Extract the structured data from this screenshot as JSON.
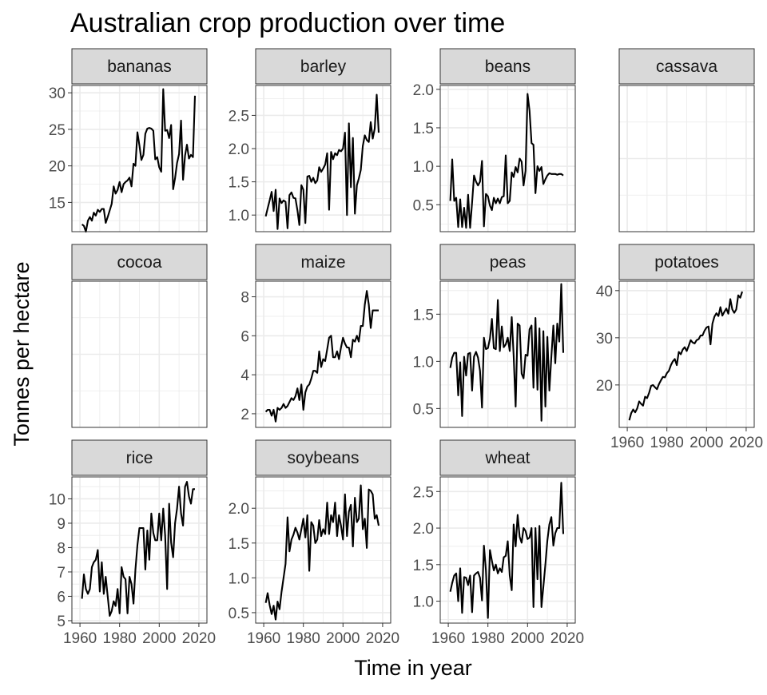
{
  "chart_data": {
    "type": "line",
    "title": "Australian crop production over time",
    "xlabel": "Time in year",
    "ylabel": "Tonnes per hectare",
    "x_ticks": [
      1960,
      1980,
      2000,
      2020
    ],
    "xlim": [
      1959,
      2021
    ],
    "grid": true,
    "legend": "none",
    "colors": {
      "line": "#000000",
      "strip_fill": "#d9d9d9",
      "grid": "#ebebeb",
      "border": "#333333",
      "text": "#4d4d4d"
    },
    "panels": [
      {
        "name": "bananas",
        "ylim": [
          11,
          31
        ],
        "y_ticks": [
          15,
          20,
          25,
          30
        ],
        "x": [
          1961,
          1962,
          1963,
          1964,
          1965,
          1966,
          1967,
          1968,
          1969,
          1970,
          1971,
          1972,
          1973,
          1974,
          1975,
          1976,
          1977,
          1978,
          1979,
          1980,
          1981,
          1982,
          1983,
          1984,
          1985,
          1986,
          1987,
          1988,
          1989,
          1990,
          1991,
          1992,
          1993,
          1994,
          1995,
          1996,
          1997,
          1998,
          1999,
          2000,
          2001,
          2002,
          2003,
          2004,
          2005,
          2006,
          2007,
          2008,
          2009,
          2010,
          2011,
          2012,
          2013,
          2014,
          2015,
          2016,
          2017,
          2018
        ],
        "y": [
          12.0,
          11.8,
          11.0,
          12.5,
          13.0,
          12.5,
          13.6,
          13.2,
          14.0,
          13.7,
          14.1,
          14.1,
          12.2,
          13.0,
          13.9,
          14.8,
          17.2,
          16.2,
          16.7,
          17.8,
          16.4,
          17.5,
          17.8,
          18.0,
          18.4,
          17.2,
          20.3,
          20.0,
          24.6,
          22.8,
          20.8,
          21.5,
          24.4,
          25.1,
          25.2,
          25.1,
          24.8,
          20.9,
          21.2,
          19.8,
          19.2,
          30.5,
          24.8,
          24.9,
          23.8,
          25.6,
          16.8,
          18.3,
          20.4,
          21.6,
          26.2,
          18.1,
          21.4,
          22.9,
          21.0,
          21.5,
          21.2,
          29.6
        ]
      },
      {
        "name": "barley",
        "ylim": [
          0.75,
          2.95
        ],
        "y_ticks": [
          1.0,
          1.5,
          2.0,
          2.5
        ],
        "x": [
          1961,
          1962,
          1963,
          1964,
          1965,
          1966,
          1967,
          1968,
          1969,
          1970,
          1971,
          1972,
          1973,
          1974,
          1975,
          1976,
          1977,
          1978,
          1979,
          1980,
          1981,
          1982,
          1983,
          1984,
          1985,
          1986,
          1987,
          1988,
          1989,
          1990,
          1991,
          1992,
          1993,
          1994,
          1995,
          1996,
          1997,
          1998,
          1999,
          2000,
          2001,
          2002,
          2003,
          2004,
          2005,
          2006,
          2007,
          2008,
          2009,
          2010,
          2011,
          2012,
          2013,
          2014,
          2015,
          2016,
          2017,
          2018
        ],
        "y": [
          0.98,
          1.1,
          1.22,
          1.35,
          1.06,
          1.38,
          0.79,
          1.25,
          1.18,
          1.22,
          1.2,
          0.8,
          1.3,
          1.34,
          1.26,
          1.25,
          1.07,
          0.85,
          1.45,
          1.38,
          0.88,
          1.58,
          1.59,
          1.5,
          1.56,
          1.48,
          1.52,
          1.72,
          1.65,
          1.7,
          1.76,
          1.93,
          1.08,
          1.95,
          1.84,
          1.93,
          1.9,
          1.98,
          1.96,
          2.0,
          2.24,
          1.0,
          2.38,
          1.42,
          2.16,
          1.02,
          1.45,
          1.55,
          1.68,
          2.04,
          2.2,
          2.13,
          2.1,
          2.4,
          2.15,
          2.3,
          2.81,
          2.24
        ]
      },
      {
        "name": "beans",
        "ylim": [
          0.15,
          2.05
        ],
        "y_ticks": [
          0.5,
          1.0,
          1.5,
          2.0
        ],
        "x": [
          1961,
          1962,
          1963,
          1964,
          1965,
          1966,
          1967,
          1968,
          1969,
          1970,
          1971,
          1972,
          1973,
          1974,
          1975,
          1976,
          1977,
          1978,
          1979,
          1980,
          1981,
          1982,
          1983,
          1984,
          1985,
          1986,
          1987,
          1988,
          1989,
          1990,
          1991,
          1992,
          1993,
          1994,
          1995,
          1996,
          1997,
          1998,
          1999,
          2000,
          2001,
          2002,
          2003,
          2004,
          2005,
          2006,
          2007,
          2008,
          2009,
          2010,
          2011,
          2012,
          2013,
          2014,
          2015,
          2016,
          2017,
          2018
        ],
        "y": [
          0.55,
          1.09,
          0.55,
          0.59,
          0.21,
          0.57,
          0.21,
          0.46,
          0.2,
          0.63,
          0.2,
          0.53,
          0.88,
          0.8,
          0.75,
          0.8,
          1.07,
          0.22,
          0.64,
          0.61,
          0.49,
          0.43,
          0.59,
          0.52,
          0.58,
          0.52,
          0.6,
          0.61,
          1.14,
          0.52,
          0.55,
          0.92,
          0.86,
          0.99,
          0.92,
          1.1,
          1.06,
          0.75,
          0.94,
          1.94,
          1.72,
          1.3,
          1.28,
          0.65,
          1.0,
          0.94,
          0.99,
          0.77,
          0.83,
          0.88,
          0.91,
          0.9,
          0.9,
          0.9,
          0.89,
          0.9,
          0.9,
          0.88
        ]
      },
      {
        "name": "cassava",
        "ylim": [
          0,
          1
        ],
        "y_ticks": [],
        "x": [],
        "y": []
      },
      {
        "name": "cocoa",
        "ylim": [
          0,
          1
        ],
        "y_ticks": [],
        "x": [],
        "y": []
      },
      {
        "name": "maize",
        "ylim": [
          1.3,
          8.8
        ],
        "y_ticks": [
          2,
          4,
          6,
          8
        ],
        "x": [
          1961,
          1962,
          1963,
          1964,
          1965,
          1966,
          1967,
          1968,
          1969,
          1970,
          1971,
          1972,
          1973,
          1974,
          1975,
          1976,
          1977,
          1978,
          1979,
          1980,
          1981,
          1982,
          1983,
          1984,
          1985,
          1986,
          1987,
          1988,
          1989,
          1990,
          1991,
          1992,
          1993,
          1994,
          1995,
          1996,
          1997,
          1998,
          1999,
          2000,
          2001,
          2002,
          2003,
          2004,
          2005,
          2006,
          2007,
          2008,
          2009,
          2010,
          2011,
          2012,
          2013,
          2014,
          2015,
          2016,
          2017,
          2018
        ],
        "y": [
          2.1,
          2.2,
          2.2,
          1.9,
          2.2,
          1.6,
          2.3,
          2.2,
          2.3,
          2.5,
          2.3,
          2.4,
          2.6,
          2.8,
          2.7,
          2.9,
          3.3,
          2.7,
          3.5,
          2.2,
          3.1,
          3.4,
          3.5,
          3.8,
          4.2,
          4.2,
          4.1,
          5.2,
          4.4,
          4.8,
          4.7,
          5.3,
          5.9,
          6.0,
          4.9,
          4.9,
          5.2,
          4.8,
          5.4,
          5.9,
          5.6,
          5.4,
          5.4,
          4.9,
          5.8,
          5.7,
          6.0,
          5.7,
          6.5,
          6.5,
          7.6,
          8.3,
          7.6,
          6.4,
          7.3,
          7.3,
          7.3,
          7.3
        ]
      },
      {
        "name": "peas",
        "ylim": [
          0.3,
          1.85
        ],
        "y_ticks": [
          0.5,
          1.0,
          1.5
        ],
        "x": [
          1961,
          1962,
          1963,
          1964,
          1965,
          1966,
          1967,
          1968,
          1969,
          1970,
          1971,
          1972,
          1973,
          1974,
          1975,
          1976,
          1977,
          1978,
          1979,
          1980,
          1981,
          1982,
          1983,
          1984,
          1985,
          1986,
          1987,
          1988,
          1989,
          1990,
          1991,
          1992,
          1993,
          1994,
          1995,
          1996,
          1997,
          1998,
          1999,
          2000,
          2001,
          2002,
          2003,
          2004,
          2005,
          2006,
          2007,
          2008,
          2009,
          2010,
          2011,
          2012,
          2013,
          2014,
          2015,
          2016,
          2017,
          2018
        ],
        "y": [
          0.93,
          1.04,
          1.09,
          1.09,
          0.64,
          0.99,
          0.42,
          1.05,
          0.85,
          1.08,
          1.09,
          0.69,
          1.05,
          1.1,
          1.04,
          0.9,
          0.51,
          1.25,
          1.13,
          1.14,
          1.24,
          1.45,
          1.14,
          1.13,
          1.65,
          1.11,
          1.37,
          1.15,
          1.18,
          1.25,
          1.11,
          1.47,
          1.06,
          0.52,
          1.4,
          1.38,
          0.87,
          0.82,
          1.07,
          1.06,
          1.34,
          1.38,
          0.72,
          1.46,
          0.7,
          1.35,
          0.37,
          1.32,
          0.52,
          1.26,
          0.69,
          1.05,
          1.38,
          0.98,
          1.4,
          1.21,
          1.82,
          1.09
        ]
      },
      {
        "name": "potatoes",
        "ylim": [
          11,
          42
        ],
        "y_ticks": [
          20,
          30,
          40
        ],
        "x": [
          1961,
          1962,
          1963,
          1964,
          1965,
          1966,
          1967,
          1968,
          1969,
          1970,
          1971,
          1972,
          1973,
          1974,
          1975,
          1976,
          1977,
          1978,
          1979,
          1980,
          1981,
          1982,
          1983,
          1984,
          1985,
          1986,
          1987,
          1988,
          1989,
          1990,
          1991,
          1992,
          1993,
          1994,
          1995,
          1996,
          1997,
          1998,
          1999,
          2000,
          2001,
          2002,
          2003,
          2004,
          2005,
          2006,
          2007,
          2008,
          2009,
          2010,
          2011,
          2012,
          2013,
          2014,
          2015,
          2016,
          2017,
          2018
        ],
        "y": [
          12.5,
          14.0,
          14.8,
          14.2,
          15.0,
          16.5,
          16.0,
          15.6,
          17.5,
          17.2,
          18.3,
          19.8,
          20.0,
          19.5,
          19.1,
          20.2,
          21.0,
          21.7,
          21.6,
          22.5,
          23.0,
          24.2,
          25.0,
          25.5,
          24.2,
          27.0,
          26.5,
          27.5,
          28.0,
          27.2,
          28.3,
          29.5,
          29.0,
          28.8,
          29.5,
          29.7,
          30.5,
          30.5,
          31.5,
          32.2,
          32.4,
          28.6,
          33.0,
          34.5,
          35.2,
          34.6,
          36.5,
          34.7,
          35.5,
          36.2,
          35.1,
          38.2,
          36.0,
          35.3,
          36.0,
          39.0,
          38.5,
          39.8
        ]
      },
      {
        "name": "rice",
        "ylim": [
          4.9,
          10.9
        ],
        "y_ticks": [
          5,
          6,
          7,
          8,
          9,
          10
        ],
        "x": [
          1961,
          1962,
          1963,
          1964,
          1965,
          1966,
          1967,
          1968,
          1969,
          1970,
          1971,
          1972,
          1973,
          1974,
          1975,
          1976,
          1977,
          1978,
          1979,
          1980,
          1981,
          1982,
          1983,
          1984,
          1985,
          1986,
          1987,
          1988,
          1989,
          1990,
          1991,
          1992,
          1993,
          1994,
          1995,
          1996,
          1997,
          1998,
          1999,
          2000,
          2001,
          2002,
          2003,
          2004,
          2005,
          2006,
          2007,
          2008,
          2009,
          2010,
          2011,
          2012,
          2013,
          2014,
          2015,
          2016,
          2017,
          2018
        ],
        "y": [
          5.9,
          6.9,
          6.3,
          6.1,
          6.3,
          7.2,
          7.4,
          7.5,
          7.9,
          6.2,
          7.4,
          6.1,
          6.8,
          6.0,
          5.2,
          5.4,
          5.8,
          5.6,
          6.3,
          5.3,
          7.2,
          6.8,
          6.7,
          5.3,
          6.8,
          6.5,
          5.7,
          7.1,
          8.1,
          8.8,
          8.8,
          8.8,
          7.1,
          8.7,
          7.5,
          9.4,
          8.6,
          8.3,
          8.3,
          9.4,
          8.3,
          9.6,
          8.5,
          6.3,
          9.8,
          8.2,
          7.6,
          9.0,
          9.6,
          10.5,
          9.4,
          8.9,
          10.5,
          10.7,
          10.1,
          9.8,
          10.4,
          10.4
        ]
      },
      {
        "name": "soybeans",
        "ylim": [
          0.35,
          2.45
        ],
        "y_ticks": [
          0.5,
          1.0,
          1.5,
          2.0
        ],
        "x": [
          1961,
          1962,
          1963,
          1964,
          1965,
          1966,
          1967,
          1968,
          1969,
          1970,
          1971,
          1972,
          1973,
          1974,
          1975,
          1976,
          1977,
          1978,
          1979,
          1980,
          1981,
          1982,
          1983,
          1984,
          1985,
          1986,
          1987,
          1988,
          1989,
          1990,
          1991,
          1992,
          1993,
          1994,
          1995,
          1996,
          1997,
          1998,
          1999,
          2000,
          2001,
          2002,
          2003,
          2004,
          2005,
          2006,
          2007,
          2008,
          2009,
          2010,
          2011,
          2012,
          2013,
          2014,
          2015,
          2016,
          2017,
          2018
        ],
        "y": [
          0.64,
          0.78,
          0.61,
          0.48,
          0.6,
          0.4,
          0.66,
          0.55,
          0.8,
          1.0,
          1.2,
          1.87,
          1.38,
          1.55,
          1.62,
          1.72,
          1.65,
          1.55,
          1.7,
          1.85,
          1.58,
          1.9,
          1.1,
          1.8,
          1.75,
          1.5,
          1.55,
          1.83,
          1.6,
          1.7,
          1.63,
          2.08,
          1.63,
          1.9,
          1.8,
          2.08,
          1.6,
          1.9,
          1.75,
          1.55,
          2.2,
          1.6,
          1.95,
          2.05,
          1.45,
          2.15,
          1.8,
          1.85,
          2.33,
          1.7,
          1.85,
          1.43,
          2.27,
          2.25,
          2.2,
          1.85,
          1.9,
          1.75
        ]
      },
      {
        "name": "wheat",
        "ylim": [
          0.7,
          2.7
        ],
        "y_ticks": [
          1.0,
          1.5,
          2.0,
          2.5
        ],
        "x": [
          1961,
          1962,
          1963,
          1964,
          1965,
          1966,
          1967,
          1968,
          1969,
          1970,
          1971,
          1972,
          1973,
          1974,
          1975,
          1976,
          1977,
          1978,
          1979,
          1980,
          1981,
          1982,
          1983,
          1984,
          1985,
          1986,
          1987,
          1988,
          1989,
          1990,
          1991,
          1992,
          1993,
          1994,
          1995,
          1996,
          1997,
          1998,
          1999,
          2000,
          2001,
          2002,
          2003,
          2004,
          2005,
          2006,
          2007,
          2008,
          2009,
          2010,
          2011,
          2012,
          2013,
          2014,
          2015,
          2016,
          2017,
          2018
        ],
        "y": [
          1.13,
          1.25,
          1.35,
          1.38,
          1.0,
          1.45,
          0.84,
          1.33,
          1.32,
          1.22,
          1.35,
          0.85,
          1.35,
          1.38,
          1.4,
          1.32,
          1.01,
          1.76,
          1.42,
          0.77,
          1.7,
          1.55,
          1.42,
          1.5,
          1.38,
          1.45,
          1.4,
          1.6,
          1.62,
          1.82,
          1.35,
          1.15,
          2.05,
          1.75,
          2.18,
          1.88,
          1.8,
          2.0,
          1.96,
          1.85,
          1.87,
          2.0,
          0.92,
          2.0,
          1.3,
          2.03,
          0.92,
          1.2,
          1.5,
          1.83,
          2.05,
          2.15,
          1.76,
          1.93,
          2.0,
          2.0,
          2.62,
          1.92
        ]
      }
    ]
  }
}
